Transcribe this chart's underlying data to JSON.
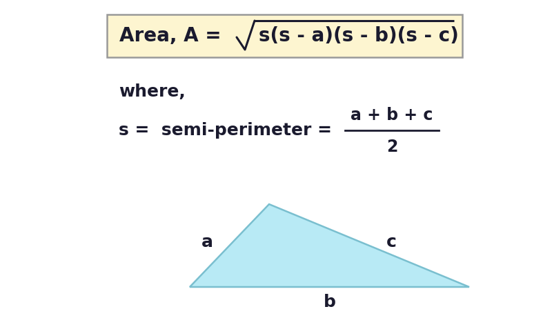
{
  "bg_color": "#ffffff",
  "box_bg": "#fdf5d0",
  "box_edge": "#999999",
  "where_text": "where,",
  "semi_line_left": "s =  semi-perimeter = ",
  "fraction_num": "a + b + c",
  "fraction_den": "2",
  "triangle_fill": "#b8eaf5",
  "triangle_edge": "#7abfcf",
  "label_a": "a",
  "label_b": "b",
  "label_c": "c",
  "font_color": "#1a1a2e",
  "box_text_left": "Area, A = ",
  "box_text_right": "s(s - a)(s - b)(s - c)",
  "figw": 8.0,
  "figh": 4.61,
  "dpi": 100
}
